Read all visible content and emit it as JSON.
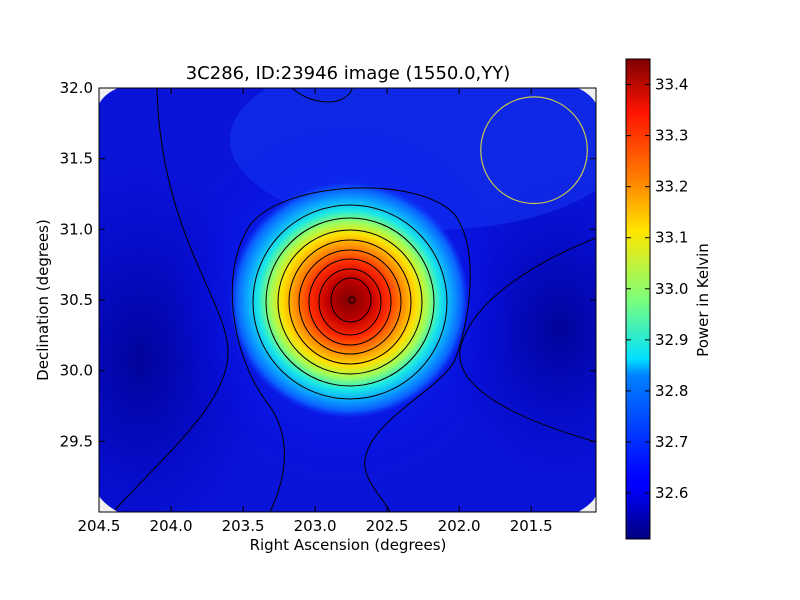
{
  "chart_data": {
    "type": "heatmap",
    "title": "3C286, ID:23946 image (1550.0,YY)",
    "xlabel": "Right Ascension (degrees)",
    "ylabel": "Declination (degrees)",
    "x_inverted": true,
    "xlim": [
      204.5,
      201.05
    ],
    "ylim": [
      29.0,
      32.0
    ],
    "xticks": [
      {
        "value": 204.5,
        "label": "204.5"
      },
      {
        "value": 204.0,
        "label": "204.0"
      },
      {
        "value": 203.5,
        "label": "203.5"
      },
      {
        "value": 203.0,
        "label": "203.0"
      },
      {
        "value": 202.5,
        "label": "202.5"
      },
      {
        "value": 202.0,
        "label": "202.0"
      },
      {
        "value": 201.5,
        "label": "201.5"
      }
    ],
    "yticks": [
      {
        "value": 29.5,
        "label": "29.5"
      },
      {
        "value": 30.0,
        "label": "30.0"
      },
      {
        "value": 30.5,
        "label": "30.5"
      },
      {
        "value": 31.0,
        "label": "31.0"
      },
      {
        "value": 31.5,
        "label": "31.5"
      },
      {
        "value": 32.0,
        "label": "32.0"
      }
    ],
    "colormap": "jet",
    "peak": {
      "ra": 202.75,
      "dec": 30.5,
      "value": 33.45
    },
    "background_level": 32.6,
    "contour_levels": [
      32.6,
      32.7,
      32.8,
      32.9,
      33.0,
      33.1,
      33.2,
      33.3,
      33.4
    ],
    "beam": {
      "ra": 201.48,
      "dec": 31.56,
      "radius_deg": 0.37,
      "color": "#c8c850"
    },
    "colorbar": {
      "label": "Power in Kelvin",
      "min": 32.51,
      "max": 33.45,
      "ticks": [
        {
          "value": 32.6,
          "label": "32.6"
        },
        {
          "value": 32.7,
          "label": "32.7"
        },
        {
          "value": 32.8,
          "label": "32.8"
        },
        {
          "value": 32.9,
          "label": "32.9"
        },
        {
          "value": 33.0,
          "label": "33.0"
        },
        {
          "value": 33.1,
          "label": "33.1"
        },
        {
          "value": 33.2,
          "label": "33.2"
        },
        {
          "value": 33.3,
          "label": "33.3"
        },
        {
          "value": 33.4,
          "label": "33.4"
        }
      ]
    }
  }
}
